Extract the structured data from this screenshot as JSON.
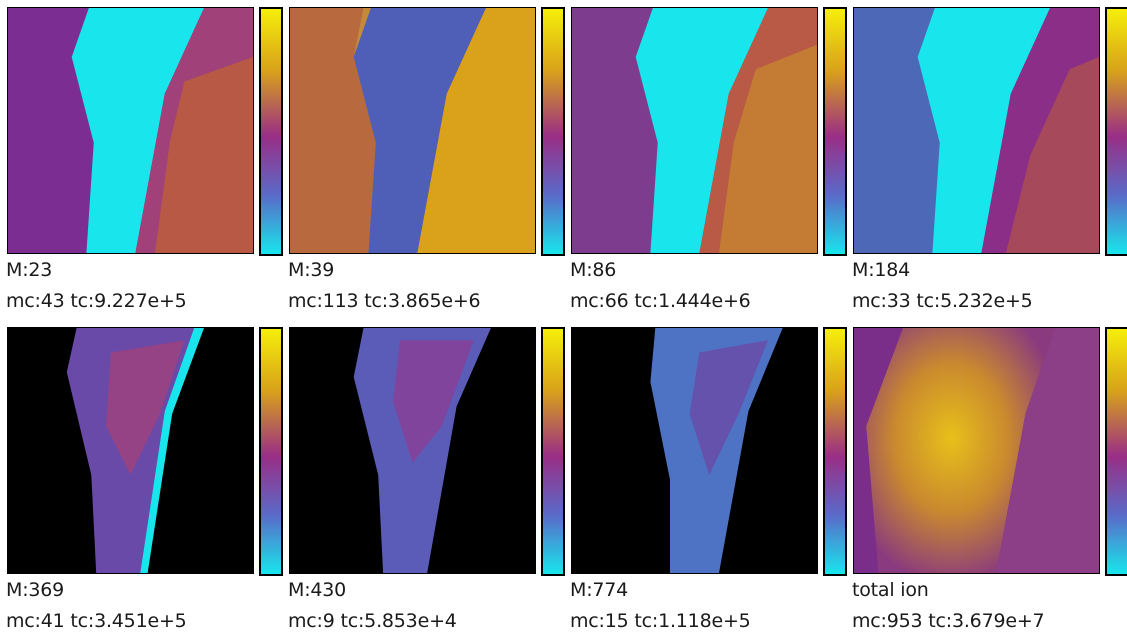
{
  "panels": [
    {
      "mass": "M:23",
      "stats": "mc:43 tc:9.227e+5",
      "style": "m23"
    },
    {
      "mass": "M:39",
      "stats": "mc:113 tc:3.865e+6",
      "style": "m39"
    },
    {
      "mass": "M:86",
      "stats": "mc:66 tc:1.444e+6",
      "style": "m86"
    },
    {
      "mass": "M:184",
      "stats": "mc:33 tc:5.232e+5",
      "style": "m184"
    },
    {
      "mass": "M:369",
      "stats": "mc:41 tc:3.451e+5",
      "style": "m369"
    },
    {
      "mass": "M:430",
      "stats": "mc:9 tc:5.853e+4",
      "style": "m430"
    },
    {
      "mass": "M:774",
      "stats": "mc:15 tc:1.118e+5",
      "style": "m774"
    },
    {
      "mass": "total ion",
      "stats": "mc:953 tc:3.679e+7",
      "style": "total"
    }
  ],
  "colormap": {
    "high": "#f5ef0a",
    "upper": "#d9a21a",
    "mid": "#9a2e86",
    "lower": "#5a6ac8",
    "low": "#18e6ec",
    "background": "#000000"
  }
}
